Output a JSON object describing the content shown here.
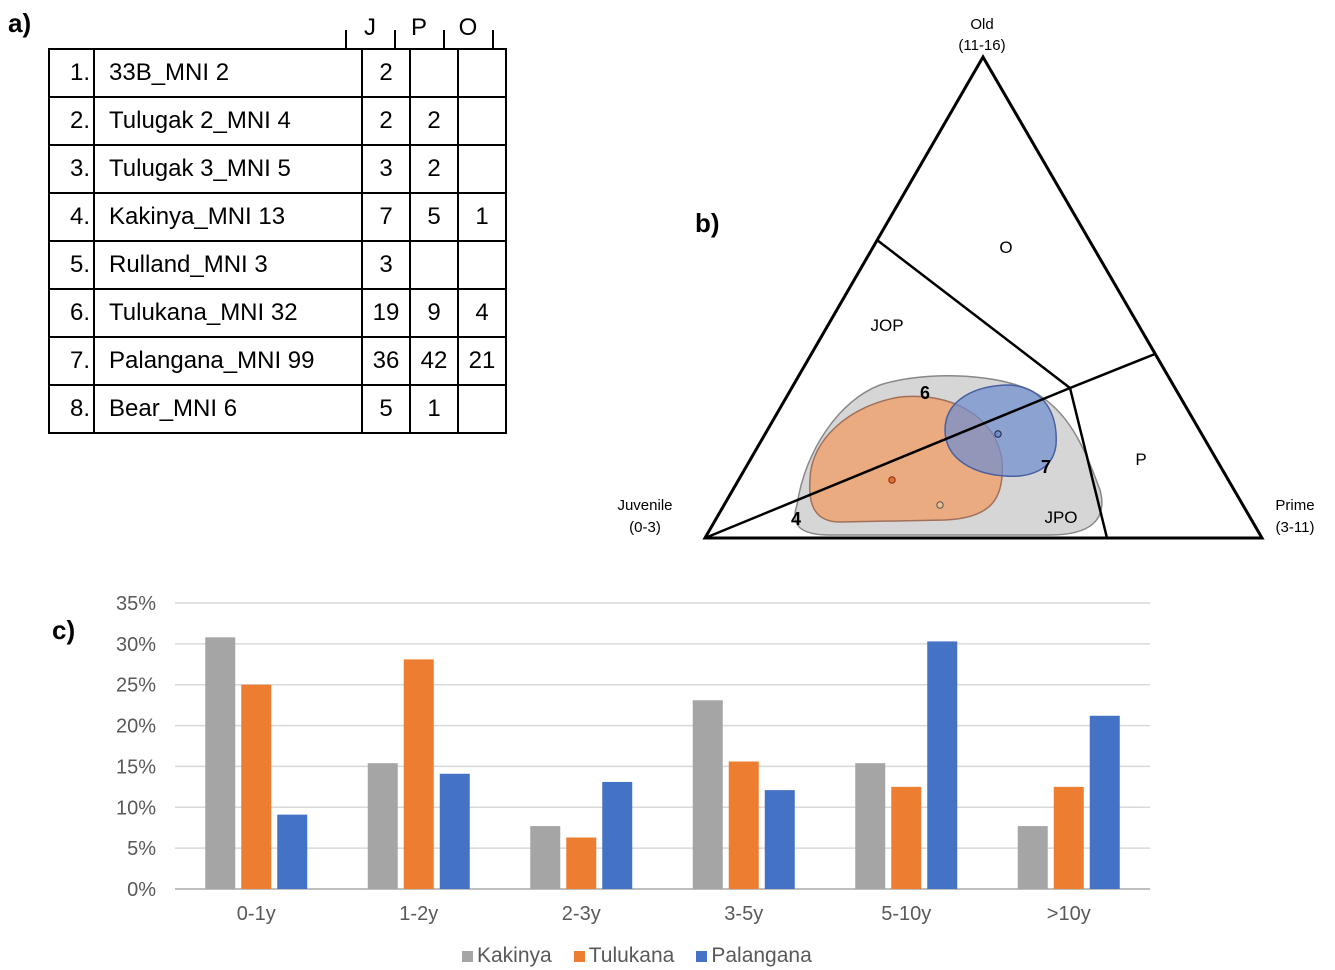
{
  "panels": {
    "a": "a)",
    "b": "b)",
    "c": "c)"
  },
  "table": {
    "columns": [
      "J",
      "P",
      "O"
    ],
    "rows": [
      {
        "num": "1.",
        "site": "33B_MNI 2",
        "J": "2",
        "P": "",
        "O": ""
      },
      {
        "num": "2.",
        "site": "Tulugak 2_MNI 4",
        "J": "2",
        "P": "2",
        "O": ""
      },
      {
        "num": "3.",
        "site": "Tulugak 3_MNI 5",
        "J": "3",
        "P": "2",
        "O": ""
      },
      {
        "num": "4.",
        "site": "Kakinya_MNI 13",
        "J": "7",
        "P": "5",
        "O": "1"
      },
      {
        "num": "5.",
        "site": "Rulland_MNI 3",
        "J": "3",
        "P": "",
        "O": ""
      },
      {
        "num": "6.",
        "site": "Tulukana_MNI 32",
        "J": "19",
        "P": "9",
        "O": "4"
      },
      {
        "num": "7.",
        "site": "Palangana_MNI 99",
        "J": "36",
        "P": "42",
        "O": "21"
      },
      {
        "num": "8.",
        "site": "Bear_MNI 6",
        "J": "5",
        "P": "1",
        "O": ""
      }
    ]
  },
  "ternary": {
    "vertices": {
      "old": {
        "name": "Old",
        "range": "(11-16)"
      },
      "juvenile": {
        "name": "Juvenile",
        "range": "(0-3)"
      },
      "prime": {
        "name": "Prime",
        "range": "(3-11)"
      }
    },
    "zones": {
      "O": "O",
      "JOP": "JOP",
      "P": "P",
      "JPO": "JPO"
    },
    "site_labels": {
      "s4": "4",
      "s6": "6",
      "s7": "7"
    },
    "colors": {
      "grey_region": "#c8c8c8",
      "orange_region": "#f0a06a",
      "blue_region": "#6f8fd0"
    }
  },
  "chart_data": {
    "type": "bar",
    "categories": [
      "0-1y",
      "1-2y",
      "2-3y",
      "3-5y",
      "5-10y",
      ">10y"
    ],
    "series": [
      {
        "name": "Kakinya",
        "color": "#a5a5a5",
        "values": [
          30.8,
          15.4,
          7.7,
          23.1,
          15.4,
          7.7
        ]
      },
      {
        "name": "Tulukana",
        "color": "#ed7d31",
        "values": [
          25.0,
          28.1,
          6.3,
          15.6,
          12.5,
          12.5
        ]
      },
      {
        "name": "Palangana",
        "color": "#4472c4",
        "values": [
          9.1,
          14.1,
          13.1,
          12.1,
          30.3,
          21.2
        ]
      }
    ],
    "yticks": [
      "0%",
      "5%",
      "10%",
      "15%",
      "20%",
      "25%",
      "30%",
      "35%"
    ],
    "ylim": [
      0,
      35
    ],
    "legend_position": "bottom",
    "grid": true
  }
}
